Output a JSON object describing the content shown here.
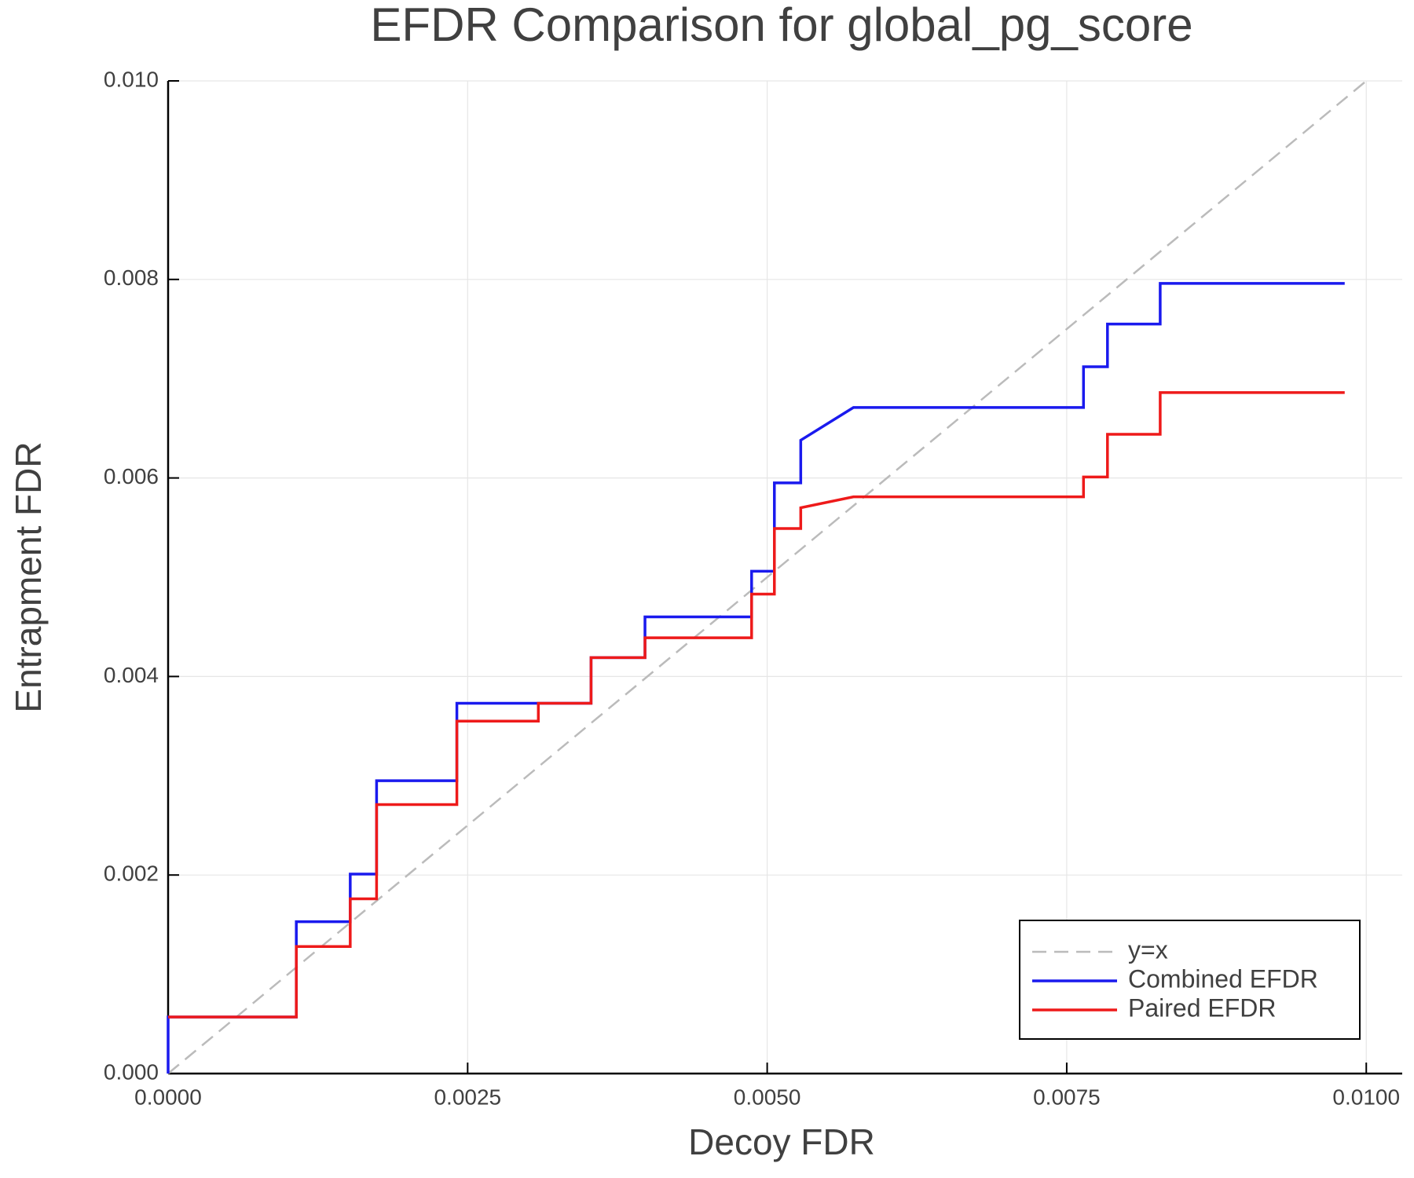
{
  "chart_data": {
    "type": "line",
    "title": "EFDR Comparison for global_pg_score",
    "xlabel": "Decoy FDR",
    "ylabel": "Entrapment FDR",
    "xlim": [
      0,
      0.0103
    ],
    "ylim": [
      0,
      0.01
    ],
    "xticks": [
      {
        "value": 0,
        "label": "0.0000"
      },
      {
        "value": 0.0025,
        "label": "0.0025"
      },
      {
        "value": 0.005,
        "label": "0.0050"
      },
      {
        "value": 0.0075,
        "label": "0.0075"
      },
      {
        "value": 0.01,
        "label": "0.0100"
      }
    ],
    "yticks": [
      {
        "value": 0,
        "label": "0.000"
      },
      {
        "value": 0.002,
        "label": "0.002"
      },
      {
        "value": 0.004,
        "label": "0.004"
      },
      {
        "value": 0.006,
        "label": "0.006"
      },
      {
        "value": 0.008,
        "label": "0.008"
      },
      {
        "value": 0.01,
        "label": "0.010"
      }
    ],
    "grid": true,
    "legend": "lower right",
    "series": [
      {
        "name": "y=x",
        "color": "#bbbbbb",
        "style": "dashed",
        "x": [
          0,
          0.01
        ],
        "y": [
          0,
          0.01
        ]
      },
      {
        "name": "Combined EFDR",
        "color": "#1a1aee",
        "style": "solid",
        "x": [
          0,
          0,
          0.00107,
          0.00107,
          0.00152,
          0.00152,
          0.00174,
          0.00174,
          0.00241,
          0.00241,
          0.00353,
          0.00353,
          0.00398,
          0.00398,
          0.00487,
          0.00487,
          0.00506,
          0.00506,
          0.00528,
          0.00528,
          0.00572,
          0.00764,
          0.00764,
          0.00784,
          0.00784,
          0.00828,
          0.00828,
          0.00982
        ],
        "y": [
          0,
          0.00057,
          0.00057,
          0.00153,
          0.00153,
          0.00201,
          0.00201,
          0.00295,
          0.00295,
          0.00373,
          0.00373,
          0.00419,
          0.00419,
          0.0046,
          0.0046,
          0.00506,
          0.00506,
          0.00595,
          0.00595,
          0.00638,
          0.00671,
          0.00671,
          0.00712,
          0.00712,
          0.00755,
          0.00755,
          0.00796,
          0.00796
        ]
      },
      {
        "name": "Paired EFDR",
        "color": "#ee1a1a",
        "style": "solid",
        "x": [
          0,
          0.00107,
          0.00107,
          0.00152,
          0.00152,
          0.00174,
          0.00174,
          0.00241,
          0.00241,
          0.00309,
          0.00309,
          0.00353,
          0.00353,
          0.00398,
          0.00398,
          0.00487,
          0.00487,
          0.00506,
          0.00506,
          0.00528,
          0.00528,
          0.00572,
          0.00764,
          0.00764,
          0.00784,
          0.00784,
          0.00828,
          0.00828,
          0.00982
        ],
        "y": [
          0.00057,
          0.00057,
          0.00128,
          0.00128,
          0.00176,
          0.00176,
          0.00271,
          0.00271,
          0.00355,
          0.00355,
          0.00373,
          0.00373,
          0.00419,
          0.00419,
          0.00439,
          0.00439,
          0.00483,
          0.00483,
          0.00549,
          0.00549,
          0.0057,
          0.00581,
          0.00581,
          0.00601,
          0.00601,
          0.00644,
          0.00644,
          0.00686,
          0.00686
        ]
      }
    ]
  }
}
